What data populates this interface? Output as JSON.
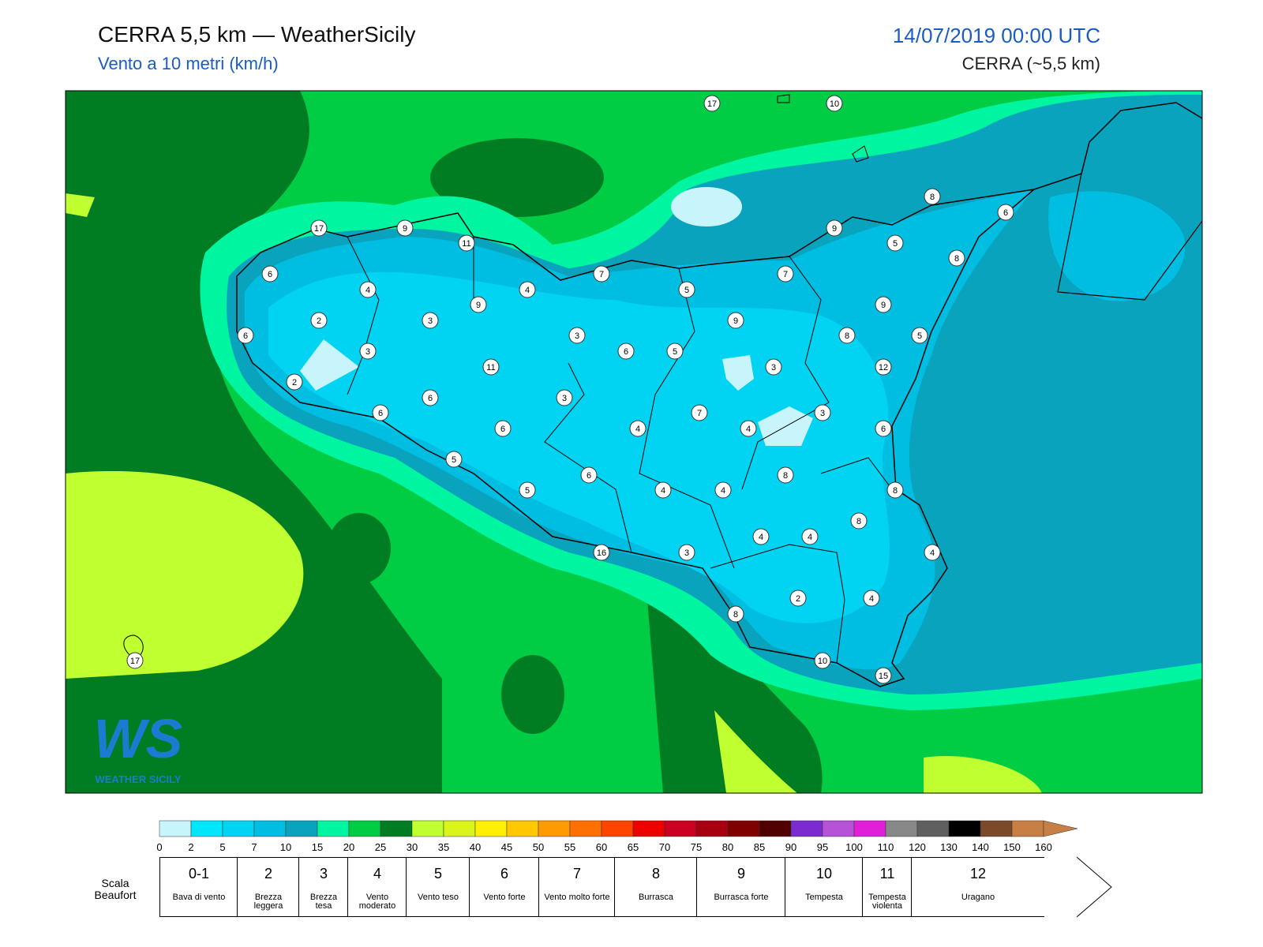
{
  "header": {
    "title": "CERRA 5,5 km — WeatherSicily",
    "subtitle": "Vento a 10 metri (km/h)",
    "date": "14/07/2019 00:00 UTC",
    "model": "CERRA (~5,5 km)"
  },
  "map": {
    "stations": [
      17,
      10,
      17,
      9,
      11,
      8,
      6,
      9,
      5,
      8,
      6,
      7,
      7,
      4,
      4,
      5,
      9,
      9,
      2,
      3,
      9,
      6,
      3,
      8,
      5,
      3,
      6,
      5,
      11,
      3,
      12,
      2,
      6,
      3,
      6,
      7,
      3,
      6,
      4,
      4,
      6,
      5,
      6,
      8,
      5,
      4,
      4,
      8,
      8,
      4,
      4,
      4,
      16,
      3,
      2,
      4,
      8,
      10,
      15,
      17
    ]
  },
  "logo": {
    "mark": "WS",
    "name": "WEATHER SICILY"
  },
  "colorbar": {
    "ticks": [
      0,
      2,
      5,
      7,
      10,
      15,
      20,
      25,
      30,
      35,
      40,
      45,
      50,
      55,
      60,
      65,
      70,
      75,
      80,
      85,
      90,
      95,
      100,
      110,
      120,
      130,
      140,
      150,
      160
    ],
    "colors": [
      "#c8f5fb",
      "#00e6fa",
      "#00d4f2",
      "#00bde2",
      "#09a3bd",
      "#00f5a0",
      "#00cc44",
      "#007d22",
      "#c0ff30",
      "#d9f51a",
      "#ffef00",
      "#ffc800",
      "#ff9a00",
      "#ff7000",
      "#ff4400",
      "#ee0000",
      "#cc0022",
      "#a80010",
      "#800000",
      "#500000",
      "#7b2cd0",
      "#b552d6",
      "#e020d8",
      "#888888",
      "#5f5f5f",
      "#000000",
      "#7a4a2a",
      "#c87f45"
    ]
  },
  "beaufort": {
    "label": "Scala Beaufort",
    "classes": [
      {
        "force": "0-1",
        "name": "Bava di vento"
      },
      {
        "force": "2",
        "name": "Brezza leggera"
      },
      {
        "force": "3",
        "name": "Brezza tesa"
      },
      {
        "force": "4",
        "name": "Vento moderato"
      },
      {
        "force": "5",
        "name": "Vento teso"
      },
      {
        "force": "6",
        "name": "Vento forte"
      },
      {
        "force": "7",
        "name": "Vento molto forte"
      },
      {
        "force": "8",
        "name": "Burrasca"
      },
      {
        "force": "9",
        "name": "Burrasca forte"
      },
      {
        "force": "10",
        "name": "Tempesta"
      },
      {
        "force": "11",
        "name": "Tempesta violenta"
      },
      {
        "force": "12",
        "name": "Uragano"
      }
    ]
  }
}
